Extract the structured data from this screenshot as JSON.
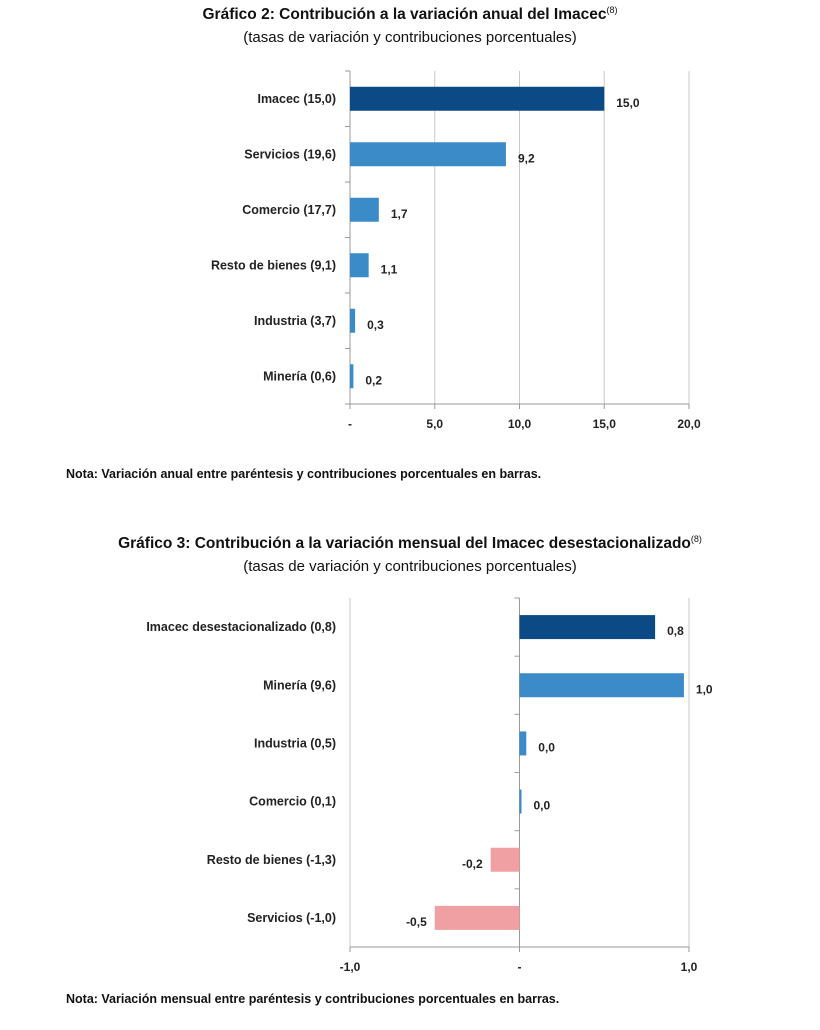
{
  "chart_data": [
    {
      "type": "bar",
      "orientation": "horizontal",
      "title": "Gráfico 2: Contribución a la variación anual del Imacec",
      "title_note": "(8)",
      "subtitle": "(tasas de variación y contribuciones porcentuales)",
      "categories": [
        "Imacec (15,0)",
        "Servicios (19,6)",
        "Comercio (17,7)",
        "Resto de bienes (9,1)",
        "Industria (3,7)",
        "Minería (0,6)"
      ],
      "values": [
        15.0,
        9.2,
        1.7,
        1.1,
        0.3,
        0.2
      ],
      "value_labels": [
        "15,0",
        "9,2",
        "1,7",
        "1,1",
        "0,3",
        "0,2"
      ],
      "xlim": [
        0,
        20
      ],
      "xticks": [
        0,
        5,
        10,
        15,
        20
      ],
      "xtick_labels": [
        "-",
        "5,0",
        "10,0",
        "15,0",
        "20,0"
      ],
      "grid": true,
      "note": "Nota: Variación anual entre paréntesis y contribuciones porcentuales en barras."
    },
    {
      "type": "bar",
      "orientation": "horizontal",
      "title": "Gráfico 3: Contribución a la variación mensual del Imacec desestacionalizado",
      "title_note": "(8)",
      "subtitle": "(tasas de variación y contribuciones porcentuales)",
      "categories": [
        "Imacec desestacionalizado (0,8)",
        "Minería (9,6)",
        "Industria (0,5)",
        "Comercio (0,1)",
        "Resto de bienes (-1,3)",
        "Servicios (-1,0)"
      ],
      "values": [
        0.8,
        0.97,
        0.04,
        0.005,
        -0.17,
        -0.5
      ],
      "value_labels": [
        "0,8",
        "1,0",
        "0,0",
        "0,0",
        "-0,2",
        "-0,5"
      ],
      "xlim": [
        -1,
        1
      ],
      "xticks": [
        -1,
        0,
        1
      ],
      "xtick_labels": [
        "-1,0",
        "-",
        "1,0"
      ],
      "grid": true,
      "note": "Nota: Variación mensual entre paréntesis y contribuciones porcentuales en barras."
    }
  ],
  "colors": {
    "total": "#0c4a86",
    "sector": "#3a8bc8",
    "negative": "#f0a0a2",
    "grid": "#c8c8c8",
    "axis": "#9a9a9a"
  }
}
